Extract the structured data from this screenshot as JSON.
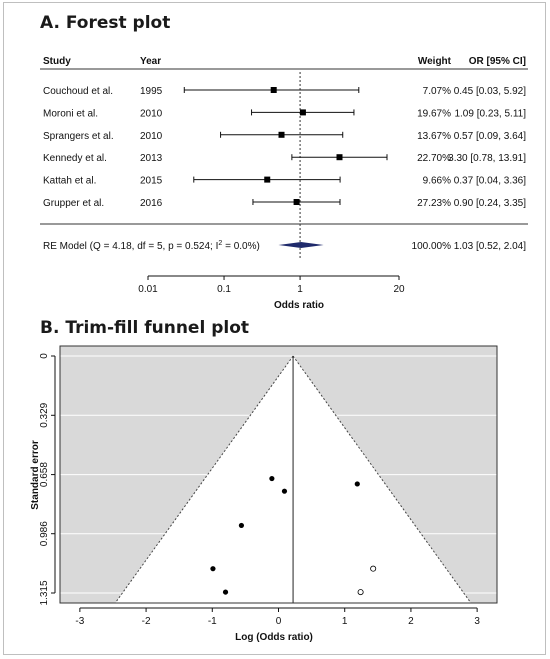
{
  "chart_data": [
    {
      "type": "forest",
      "title": "A. Forest plot",
      "headers": {
        "study": "Study",
        "year": "Year",
        "weight": "Weight",
        "or": "OR [95% CI]"
      },
      "studies": [
        {
          "study": "Couchoud et al.",
          "year": "1995",
          "weight": "7.07%",
          "or": 0.45,
          "lo": 0.03,
          "hi": 5.92,
          "ci_text": "0.45 [0.03, 5.92]"
        },
        {
          "study": "Moroni et al.",
          "year": "2010",
          "weight": "19.67%",
          "or": 1.09,
          "lo": 0.23,
          "hi": 5.11,
          "ci_text": "1.09 [0.23, 5.11]"
        },
        {
          "study": "Sprangers et al.",
          "year": "2010",
          "weight": "13.67%",
          "or": 0.57,
          "lo": 0.09,
          "hi": 3.64,
          "ci_text": "0.57 [0.09, 3.64]"
        },
        {
          "study": "Kennedy et al.",
          "year": "2013",
          "weight": "22.70%",
          "or": 3.3,
          "lo": 0.78,
          "hi": 13.91,
          "ci_text": "3.30 [0.78, 13.91]"
        },
        {
          "study": "Kattah et al.",
          "year": "2015",
          "weight": "9.66%",
          "or": 0.37,
          "lo": 0.04,
          "hi": 3.36,
          "ci_text": "0.37 [0.04, 3.36]"
        },
        {
          "study": "Grupper et al.",
          "year": "2016",
          "weight": "27.23%",
          "or": 0.9,
          "lo": 0.24,
          "hi": 3.35,
          "ci_text": "0.90 [0.24, 3.35]"
        }
      ],
      "summary": {
        "label_pre": "RE Model (Q = 4.18, df = 5, p = 0.524; I",
        "label_sup": "2",
        "label_post": " = 0.0%)",
        "weight": "100.00%",
        "or": 1.03,
        "lo": 0.52,
        "hi": 2.04,
        "ci_text": "1.03 [0.52, 2.04]"
      },
      "x_scale": "log",
      "x_ticks": [
        0.01,
        0.1,
        1,
        20
      ],
      "x_tick_labels": [
        "0.01",
        "0.1",
        "1",
        "20"
      ],
      "xlabel": "Odds ratio",
      "reference_line": 1,
      "colors": {
        "summary": "#1f2a6b",
        "square": "#000000"
      }
    },
    {
      "type": "scatter",
      "title": "B. Trim-fill funnel plot",
      "xlabel": "Log (Odds ratio)",
      "ylabel": "Standard error",
      "xlim": [
        -3.3,
        3.3
      ],
      "ylim": [
        1.315,
        0
      ],
      "x_ticks": [
        -3,
        -2,
        -1,
        0,
        1,
        2,
        3
      ],
      "y_ticks": [
        0,
        0.329,
        0.658,
        0.986,
        1.315
      ],
      "y_tick_labels": [
        "0",
        "0.329",
        "0.658",
        "0.986",
        "1.315"
      ],
      "center": 0.22,
      "observed": [
        {
          "x": -0.1,
          "y": 0.68
        },
        {
          "x": 0.09,
          "y": 0.75
        },
        {
          "x": -0.56,
          "y": 0.94
        },
        {
          "x": -0.99,
          "y": 1.18
        },
        {
          "x": -0.8,
          "y": 1.31
        },
        {
          "x": 1.19,
          "y": 0.71
        }
      ],
      "imputed": [
        {
          "x": 1.43,
          "y": 1.18
        },
        {
          "x": 1.24,
          "y": 1.31
        }
      ],
      "colors": {
        "background": "#d9d9d9",
        "funnel": "#ffffff"
      }
    }
  ]
}
